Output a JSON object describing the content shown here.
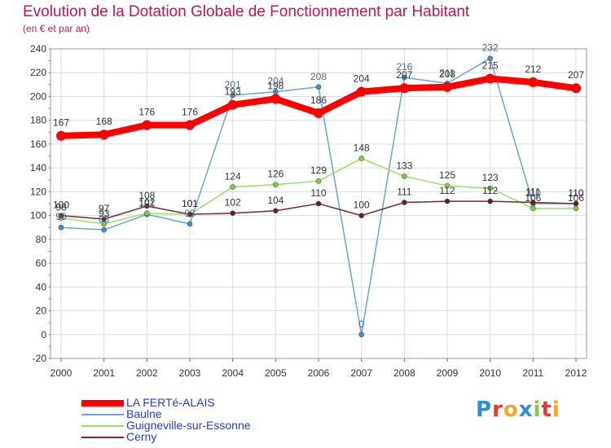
{
  "header": {
    "title": "Evolution de la Dotation Globale de Fonctionnement par Habitant",
    "subtitle": "(en € et par an)"
  },
  "logo": {
    "text": [
      "P",
      "r",
      "o",
      "x",
      "i",
      "t",
      "i"
    ],
    "colors": [
      "#2e8fd6",
      "#e53935",
      "#f5a623",
      "#2e8fd6",
      "#8bc34a",
      "#e53935",
      "#f5a623"
    ]
  },
  "legend": [
    {
      "label": "LA FERTé-ALAIS",
      "color": "#ff0000"
    },
    {
      "label": "Baulne",
      "color": "#6aa5d8"
    },
    {
      "label": "Guigneville-sur-Essonne",
      "color": "#99e06a"
    },
    {
      "label": "Cerny",
      "color": "#7a2a30"
    }
  ],
  "chart_data": {
    "type": "line",
    "title": "Evolution de la Dotation Globale de Fonctionnement par Habitant",
    "ylabel": "(en € et par an)",
    "x": [
      "2000",
      "2001",
      "2002",
      "2003",
      "2004",
      "2005",
      "2006",
      "2007",
      "2008",
      "2009",
      "2010",
      "2011",
      "2012"
    ],
    "ylim": [
      -20,
      240
    ],
    "yticks": [
      "-20",
      "0",
      "20",
      "40",
      "60",
      "80",
      "100",
      "120",
      "140",
      "160",
      "180",
      "200",
      "220",
      "240"
    ],
    "grid": true,
    "series": [
      {
        "name": "LA FERTé-ALAIS",
        "color": "#ff0000",
        "values": [
          167,
          168,
          176,
          176,
          193,
          198,
          186,
          204,
          207,
          208,
          215,
          212,
          207
        ],
        "labels": [
          "167",
          "168",
          "176",
          "176",
          "193",
          "198",
          "186",
          "204",
          "207",
          "208",
          "215",
          "212",
          "207"
        ]
      },
      {
        "name": "Baulne",
        "color": "#6aa5d8",
        "marker": "#3a8fd8",
        "values": [
          90,
          88,
          101,
          93,
          201,
          204,
          208,
          0,
          216,
          211,
          232,
          110,
          110
        ],
        "labels": [
          "90",
          "88",
          "101",
          "93",
          "201",
          "204",
          "208",
          "0",
          "216",
          "211",
          "232",
          "110",
          "110"
        ]
      },
      {
        "name": "Guigneville-sur-Essonne",
        "color": "#99e06a",
        "marker": "#7cd13a",
        "values": [
          98,
          93,
          102,
          101,
          124,
          126,
          129,
          148,
          133,
          125,
          123,
          106,
          106
        ],
        "labels": [
          "98",
          "93",
          "102",
          "101",
          "124",
          "126",
          "129",
          "148",
          "133",
          "125",
          "123",
          "106",
          "106"
        ]
      },
      {
        "name": "Cerny",
        "color": "#7a2a30",
        "marker": "#6b1a1f",
        "values": [
          100,
          97,
          108,
          101,
          102,
          104,
          110,
          100,
          111,
          112,
          112,
          111,
          110
        ],
        "labels": [
          "100",
          "97",
          "108",
          "101",
          "102",
          "104",
          "110",
          "100",
          "111",
          "112",
          "112",
          "111",
          "110"
        ]
      }
    ]
  }
}
